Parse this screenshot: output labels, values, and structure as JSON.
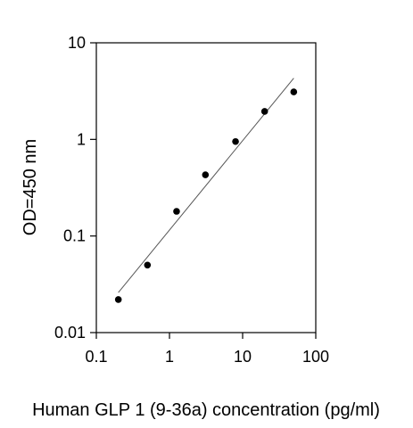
{
  "chart_data": {
    "type": "scatter",
    "title": "",
    "xlabel": "Human GLP 1 (9-36a) concentration (pg/ml)",
    "ylabel": "OD=450 nm",
    "x_scale": "log",
    "y_scale": "log",
    "xlim": [
      0.1,
      100
    ],
    "ylim": [
      0.01,
      10
    ],
    "x_ticks": [
      "0.1",
      "1",
      "10",
      "100"
    ],
    "y_ticks": [
      "0.01",
      "0.1",
      "1",
      "10"
    ],
    "grid": false,
    "legend": "none",
    "series": [
      {
        "points": [
          {
            "x": 0.2,
            "y": 0.022
          },
          {
            "x": 0.5,
            "y": 0.05
          },
          {
            "x": 1.25,
            "y": 0.18
          },
          {
            "x": 3.1,
            "y": 0.43
          },
          {
            "x": 8.0,
            "y": 0.95
          },
          {
            "x": 20.0,
            "y": 1.95
          },
          {
            "x": 50.0,
            "y": 3.1
          }
        ]
      }
    ],
    "fit_line": [
      {
        "x": 0.2,
        "y": 0.026
      },
      {
        "x": 50.0,
        "y": 4.3
      }
    ],
    "colors": {
      "points": "#000000",
      "fit_line": "#555555",
      "axes": "#000000"
    }
  }
}
